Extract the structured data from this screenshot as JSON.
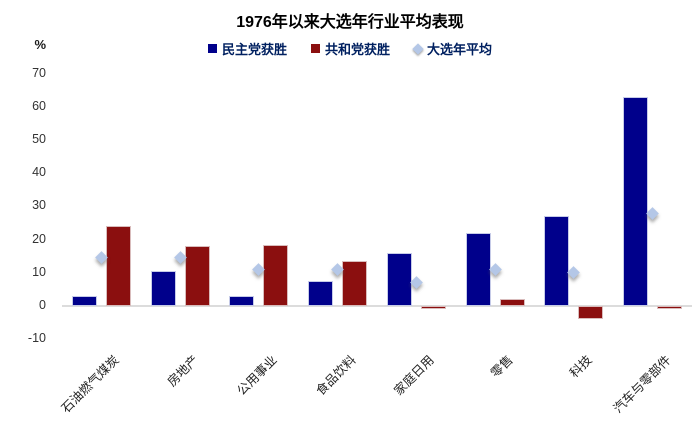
{
  "chart_data": {
    "type": "bar",
    "title": "1976年以来大选年行业平均表现",
    "unit_label": "%",
    "categories": [
      "石油燃气煤炭",
      "房地产",
      "公用事业",
      "食品饮料",
      "家庭日用",
      "零售",
      "科技",
      "汽车与零部件"
    ],
    "series": [
      {
        "name": "民主党获胜",
        "color": "#00008b",
        "values": [
          3,
          10.5,
          3,
          7.5,
          16,
          22,
          27,
          63
        ]
      },
      {
        "name": "共和党获胜",
        "color": "#8b0f0f",
        "values": [
          24,
          18,
          18.5,
          13.5,
          -1,
          2,
          -4,
          -1
        ]
      }
    ],
    "marker_series": {
      "name": "大选年平均",
      "color": "#b4c7e7",
      "values": [
        14.5,
        14.5,
        11,
        11,
        7,
        11,
        10,
        28
      ]
    },
    "ylim": [
      -10,
      70
    ],
    "yticks": [
      70,
      60,
      50,
      40,
      30,
      20,
      10,
      0,
      -10
    ],
    "grid": "zero-line-only",
    "legend_position": "top"
  }
}
